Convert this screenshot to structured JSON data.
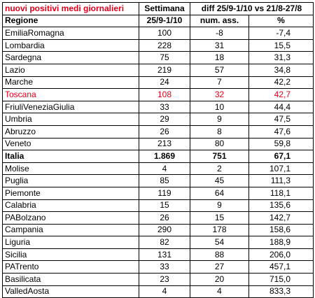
{
  "title": "nuovi positivi medi giornalieri",
  "header": {
    "settimana": "Settimana",
    "diff": "diff 25/9-1/10 vs 21/8-27/8",
    "regione": "Regione",
    "period": "25/9-1/10",
    "num_ass": "num. ass.",
    "pct": "%"
  },
  "highlight_color": "#e0001b",
  "rows": [
    {
      "region": "EmiliaRomagna",
      "value": "100",
      "abs": "-8",
      "pct": "-7,4"
    },
    {
      "region": "Lombardia",
      "value": "228",
      "abs": "31",
      "pct": "15,5"
    },
    {
      "region": "Sardegna",
      "value": "75",
      "abs": "18",
      "pct": "31,3"
    },
    {
      "region": "Lazio",
      "value": "219",
      "abs": "57",
      "pct": "34,8"
    },
    {
      "region": "Marche",
      "value": "24",
      "abs": "7",
      "pct": "42,2"
    },
    {
      "region": "Toscana",
      "value": "108",
      "abs": "32",
      "pct": "42,7",
      "highlight": true
    },
    {
      "region": "FriuliVeneziaGiulia",
      "value": "33",
      "abs": "10",
      "pct": "44,4"
    },
    {
      "region": "Umbria",
      "value": "29",
      "abs": "9",
      "pct": "47,5"
    },
    {
      "region": "Abruzzo",
      "value": "26",
      "abs": "8",
      "pct": "47,6"
    },
    {
      "region": "Veneto",
      "value": "213",
      "abs": "80",
      "pct": "59,8"
    },
    {
      "region": "Italia",
      "value": "1.869",
      "abs": "751",
      "pct": "67,1",
      "total": true
    },
    {
      "region": "Molise",
      "value": "4",
      "abs": "2",
      "pct": "107,1"
    },
    {
      "region": "Puglia",
      "value": "85",
      "abs": "45",
      "pct": "111,3"
    },
    {
      "region": "Piemonte",
      "value": "119",
      "abs": "64",
      "pct": "118,1"
    },
    {
      "region": "Calabria",
      "value": "15",
      "abs": "9",
      "pct": "135,6"
    },
    {
      "region": "PABolzano",
      "value": "26",
      "abs": "15",
      "pct": "142,7"
    },
    {
      "region": "Campania",
      "value": "290",
      "abs": "178",
      "pct": "158,6"
    },
    {
      "region": "Liguria",
      "value": "82",
      "abs": "54",
      "pct": "188,9"
    },
    {
      "region": "Sicilia",
      "value": "131",
      "abs": "88",
      "pct": "206,0"
    },
    {
      "region": "PATrento",
      "value": "33",
      "abs": "27",
      "pct": "457,1"
    },
    {
      "region": "Basilicata",
      "value": "23",
      "abs": "20",
      "pct": "715,0"
    },
    {
      "region": "ValledAosta",
      "value": "4",
      "abs": "4",
      "pct": "833,3"
    }
  ]
}
